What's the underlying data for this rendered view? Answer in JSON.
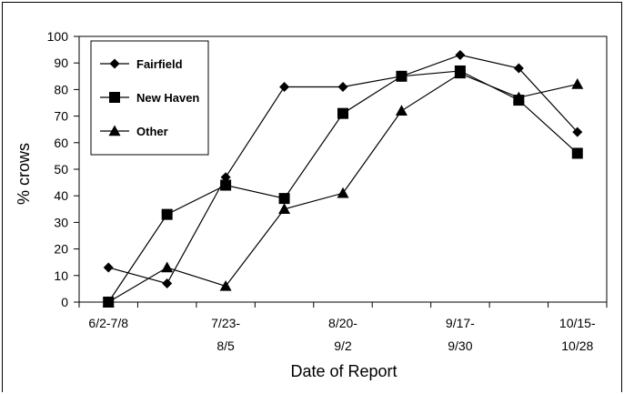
{
  "chart_data": {
    "type": "line",
    "xlabel": "Date of Report",
    "ylabel": "% crows",
    "ylim": [
      0,
      100
    ],
    "yticks": [
      "0",
      "10",
      "20",
      "30",
      "40",
      "50",
      "60",
      "70",
      "80",
      "90",
      "100"
    ],
    "categories": [
      "6/2-7/8",
      "",
      "7/23-8/5",
      "",
      "8/20-9/2",
      "",
      "9/17-9/30",
      "",
      "10/15-10/28"
    ],
    "xtick_labels": [
      {
        "line1": "6/2-7/8",
        "line2": ""
      },
      {
        "line1": "7/23-",
        "line2": "8/5"
      },
      {
        "line1": "8/20-",
        "line2": "9/2"
      },
      {
        "line1": "9/17-",
        "line2": "9/30"
      },
      {
        "line1": "10/15-",
        "line2": "10/28"
      }
    ],
    "series": [
      {
        "name": "Fairfield",
        "marker": "diamond",
        "values": [
          13,
          7,
          47,
          81,
          81,
          85,
          93,
          88,
          64
        ]
      },
      {
        "name": "New Haven",
        "marker": "square",
        "values": [
          0,
          33,
          44,
          39,
          71,
          85,
          87,
          76,
          56
        ]
      },
      {
        "name": "Other",
        "marker": "triangle",
        "values": [
          0,
          13,
          6,
          35,
          41,
          72,
          86,
          77,
          82
        ]
      }
    ],
    "grid": false,
    "legend_position": "top-left",
    "color": "#000000"
  }
}
